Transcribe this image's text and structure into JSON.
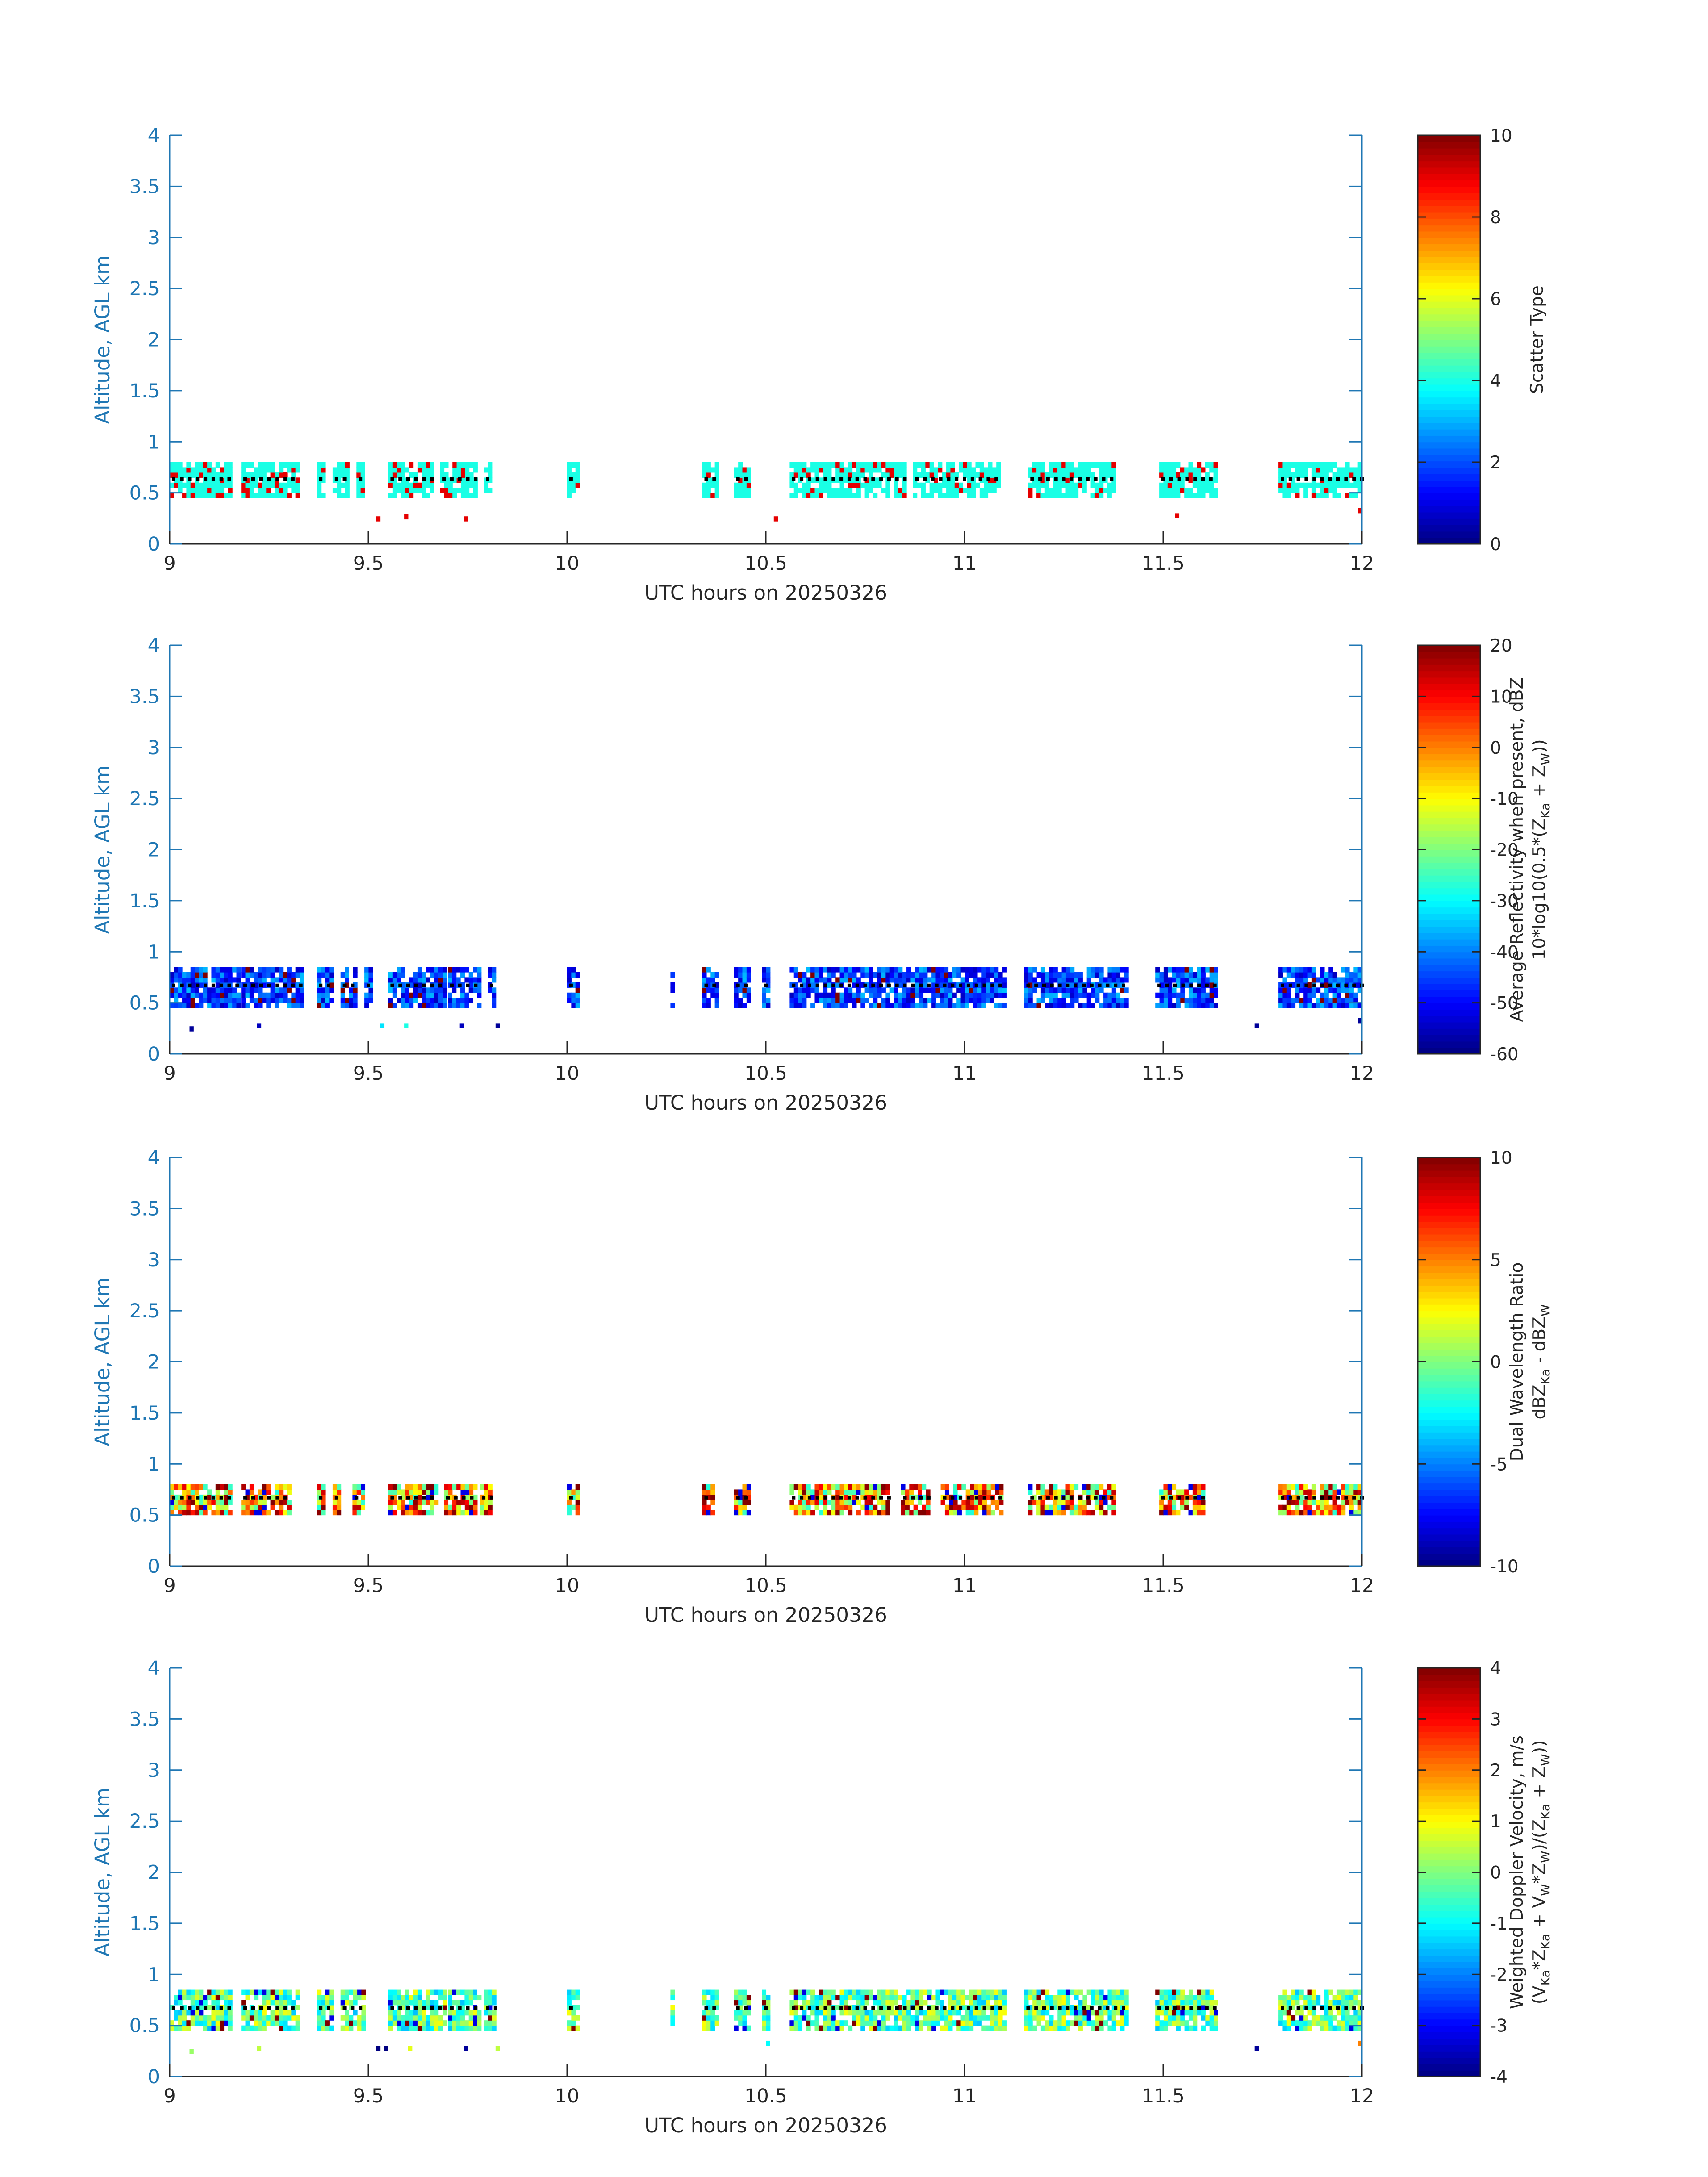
{
  "figure": {
    "date_label": "UTC hours on 20250326"
  },
  "chart_data": [
    {
      "type": "heatmap",
      "title": "",
      "xlabel": "UTC hours on 20250326",
      "ylabel": "Altitude, AGL km",
      "xlim": [
        9,
        12
      ],
      "ylim": [
        0,
        4
      ],
      "xticks": [
        9,
        9.5,
        10,
        10.5,
        11,
        11.5,
        12
      ],
      "xtick_labels": [
        "9",
        "9.5",
        "10",
        "10.5",
        "11",
        "11.5",
        "12"
      ],
      "yticks": [
        0,
        0.5,
        1,
        1.5,
        2,
        2.5,
        3,
        3.5,
        4
      ],
      "ytick_labels": [
        "0",
        "0.5",
        "1",
        "1.5",
        "2",
        "2.5",
        "3",
        "3.5",
        "4"
      ],
      "colorbar": {
        "label_lines": [
          "Scatter Type"
        ],
        "clim": [
          0,
          10
        ],
        "ticks": [
          0,
          2,
          4,
          6,
          8,
          10
        ],
        "tick_labels": [
          "0",
          "2",
          "4",
          "6",
          "8",
          "10"
        ],
        "colormap": "jet"
      },
      "segments": [
        [
          9.0,
          9.15
        ],
        [
          9.18,
          9.32
        ],
        [
          9.37,
          9.39
        ],
        [
          9.41,
          9.45
        ],
        [
          9.47,
          9.49
        ],
        [
          9.55,
          9.66
        ],
        [
          9.68,
          9.77
        ],
        [
          9.79,
          9.81
        ],
        [
          10.0,
          10.03
        ],
        [
          10.34,
          10.38
        ],
        [
          10.42,
          10.46
        ],
        [
          10.56,
          10.85
        ],
        [
          10.87,
          11.09
        ],
        [
          11.16,
          11.38
        ],
        [
          11.49,
          11.63
        ],
        [
          11.79,
          12.0
        ]
      ],
      "layer_km": [
        0.45,
        0.78
      ],
      "dominant_value": 4,
      "secondary_value": 9,
      "isolated_points": [
        {
          "x": 9.52,
          "y": 0.22,
          "v": 9
        },
        {
          "x": 9.59,
          "y": 0.24,
          "v": 9
        },
        {
          "x": 9.74,
          "y": 0.22,
          "v": 9
        },
        {
          "x": 10.52,
          "y": 0.22,
          "v": 9
        },
        {
          "x": 11.53,
          "y": 0.25,
          "v": 9
        },
        {
          "x": 11.99,
          "y": 0.3,
          "v": 9
        }
      ]
    },
    {
      "type": "heatmap",
      "title": "",
      "xlabel": "UTC hours on 20250326",
      "ylabel": "Altitude, AGL km",
      "xlim": [
        9,
        12
      ],
      "ylim": [
        0,
        4
      ],
      "xticks": [
        9,
        9.5,
        10,
        10.5,
        11,
        11.5,
        12
      ],
      "xtick_labels": [
        "9",
        "9.5",
        "10",
        "10.5",
        "11",
        "11.5",
        "12"
      ],
      "yticks": [
        0,
        0.5,
        1,
        1.5,
        2,
        2.5,
        3,
        3.5,
        4
      ],
      "ytick_labels": [
        "0",
        "0.5",
        "1",
        "1.5",
        "2",
        "2.5",
        "3",
        "3.5",
        "4"
      ],
      "colorbar": {
        "label_lines": [
          "Average Reflectivity when present, dBZ",
          "10*log10(0.5*(Z",
          "Ka",
          " + Z",
          "W",
          "))"
        ],
        "clim": [
          -60,
          20
        ],
        "ticks": [
          -60,
          -50,
          -40,
          -30,
          -20,
          -10,
          0,
          10,
          20
        ],
        "tick_labels": [
          "-60",
          "-50",
          "-40",
          "-30",
          "-20",
          "-10",
          "0",
          "10",
          "20"
        ],
        "colormap": "jet"
      },
      "segments": [
        [
          9.0,
          9.17
        ],
        [
          9.18,
          9.33
        ],
        [
          9.37,
          9.41
        ],
        [
          9.43,
          9.47
        ],
        [
          9.49,
          9.51
        ],
        [
          9.55,
          9.69
        ],
        [
          9.7,
          9.78
        ],
        [
          9.8,
          9.82
        ],
        [
          10.0,
          10.03
        ],
        [
          10.26,
          10.27
        ],
        [
          10.34,
          10.38
        ],
        [
          10.42,
          10.46
        ],
        [
          10.49,
          10.51
        ],
        [
          10.56,
          11.1
        ],
        [
          11.15,
          11.41
        ],
        [
          11.48,
          11.63
        ],
        [
          11.79,
          12.0
        ]
      ],
      "layer_km": [
        0.45,
        0.85
      ],
      "value_range": [
        -55,
        -35
      ],
      "isolated_points": [
        {
          "x": 9.05,
          "y": 0.22,
          "v": -58
        },
        {
          "x": 9.22,
          "y": 0.25,
          "v": -55
        },
        {
          "x": 9.53,
          "y": 0.25,
          "v": -32
        },
        {
          "x": 9.59,
          "y": 0.25,
          "v": -28
        },
        {
          "x": 9.73,
          "y": 0.25,
          "v": -55
        },
        {
          "x": 9.82,
          "y": 0.25,
          "v": -58
        },
        {
          "x": 11.73,
          "y": 0.25,
          "v": -58
        },
        {
          "x": 11.99,
          "y": 0.3,
          "v": -58
        }
      ]
    },
    {
      "type": "heatmap",
      "title": "",
      "xlabel": "UTC hours on 20250326",
      "ylabel": "Altitude, AGL km",
      "xlim": [
        9,
        12
      ],
      "ylim": [
        0,
        4
      ],
      "xticks": [
        9,
        9.5,
        10,
        10.5,
        11,
        11.5,
        12
      ],
      "xtick_labels": [
        "9",
        "9.5",
        "10",
        "10.5",
        "11",
        "11.5",
        "12"
      ],
      "yticks": [
        0,
        0.5,
        1,
        1.5,
        2,
        2.5,
        3,
        3.5,
        4
      ],
      "ytick_labels": [
        "0",
        "0.5",
        "1",
        "1.5",
        "2",
        "2.5",
        "3",
        "3.5",
        "4"
      ],
      "colorbar": {
        "label_lines": [
          "Dual Wavelength Ratio",
          "dBZ",
          "Ka",
          " - dBZ",
          "W"
        ],
        "clim": [
          -10,
          10
        ],
        "ticks": [
          -10,
          -5,
          0,
          5,
          10
        ],
        "tick_labels": [
          "-10",
          "-5",
          "0",
          "5",
          "10"
        ],
        "colormap": "jet"
      },
      "segments": [
        [
          9.0,
          9.15
        ],
        [
          9.18,
          9.3
        ],
        [
          9.37,
          9.39
        ],
        [
          9.41,
          9.43
        ],
        [
          9.46,
          9.49
        ],
        [
          9.55,
          9.67
        ],
        [
          9.69,
          9.77
        ],
        [
          9.78,
          9.81
        ],
        [
          10.0,
          10.03
        ],
        [
          10.34,
          10.37
        ],
        [
          10.42,
          10.46
        ],
        [
          10.56,
          10.81
        ],
        [
          10.84,
          10.91
        ],
        [
          10.94,
          11.09
        ],
        [
          11.16,
          11.38
        ],
        [
          11.49,
          11.6
        ],
        [
          11.79,
          12.0
        ]
      ],
      "layer_km": [
        0.5,
        0.8
      ],
      "value_range": [
        -2,
        10
      ]
    },
    {
      "type": "heatmap",
      "title": "",
      "xlabel": "UTC hours on 20250326",
      "ylabel": "Altitude, AGL km",
      "xlim": [
        9,
        12
      ],
      "ylim": [
        0,
        4
      ],
      "xticks": [
        9,
        9.5,
        10,
        10.5,
        11,
        11.5,
        12
      ],
      "xtick_labels": [
        "9",
        "9.5",
        "10",
        "10.5",
        "11",
        "11.5",
        "12"
      ],
      "yticks": [
        0,
        0.5,
        1,
        1.5,
        2,
        2.5,
        3,
        3.5,
        4
      ],
      "ytick_labels": [
        "0",
        "0.5",
        "1",
        "1.5",
        "2",
        "2.5",
        "3",
        "3.5",
        "4"
      ],
      "colorbar": {
        "label_lines": [
          "Weighted Doppler Velocity, m/s",
          "(V",
          "Ka",
          "*Z",
          "Ka",
          " + V",
          "W",
          "*Z",
          "W",
          ")/(Z",
          "Ka",
          " + Z",
          "W",
          "))"
        ],
        "clim": [
          -4,
          4
        ],
        "ticks": [
          -4,
          -3,
          -2,
          -1,
          0,
          1,
          2,
          3,
          4
        ],
        "tick_labels": [
          "-4",
          "-3",
          "-2",
          "-1",
          "0",
          "1",
          "2",
          "3",
          "4"
        ],
        "colormap": "jet"
      },
      "segments": [
        [
          9.0,
          9.15
        ],
        [
          9.18,
          9.32
        ],
        [
          9.37,
          9.41
        ],
        [
          9.43,
          9.49
        ],
        [
          9.55,
          9.69
        ],
        [
          9.7,
          9.78
        ],
        [
          9.79,
          9.82
        ],
        [
          10.0,
          10.03
        ],
        [
          10.26,
          10.27
        ],
        [
          10.34,
          10.38
        ],
        [
          10.42,
          10.46
        ],
        [
          10.49,
          10.51
        ],
        [
          10.56,
          11.1
        ],
        [
          11.15,
          11.41
        ],
        [
          11.48,
          11.63
        ],
        [
          11.79,
          12.0
        ]
      ],
      "layer_km": [
        0.45,
        0.85
      ],
      "value_range": [
        -1.5,
        1.0
      ],
      "isolated_points": [
        {
          "x": 9.05,
          "y": 0.22,
          "v": 0.2
        },
        {
          "x": 9.22,
          "y": 0.25,
          "v": 0.5
        },
        {
          "x": 9.52,
          "y": 0.25,
          "v": -4
        },
        {
          "x": 9.54,
          "y": 0.25,
          "v": -4
        },
        {
          "x": 9.6,
          "y": 0.25,
          "v": 0.8
        },
        {
          "x": 9.74,
          "y": 0.25,
          "v": -3.8
        },
        {
          "x": 9.82,
          "y": 0.25,
          "v": 0.5
        },
        {
          "x": 10.5,
          "y": 0.3,
          "v": -1
        },
        {
          "x": 11.73,
          "y": 0.25,
          "v": -3.8
        },
        {
          "x": 11.99,
          "y": 0.3,
          "v": 2
        }
      ]
    }
  ]
}
